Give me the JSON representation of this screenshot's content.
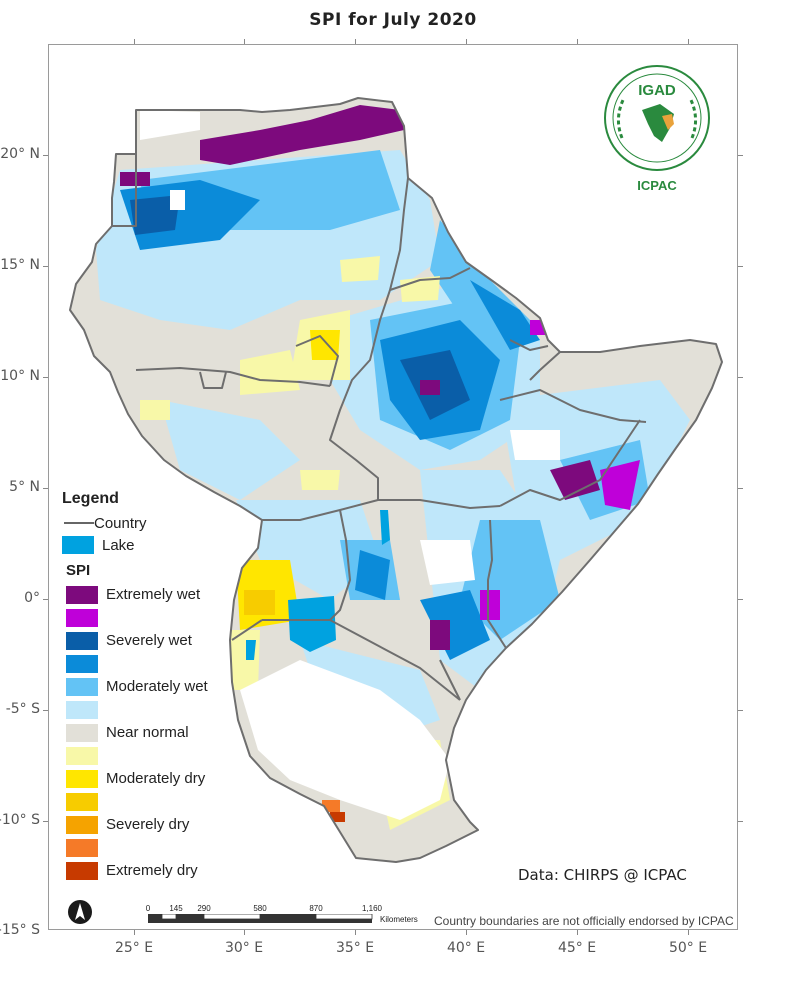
{
  "title": "SPI  for  July 2020",
  "map": {
    "lat_labels": [
      "20° N",
      "15° N",
      "10° N",
      "5° N",
      "0°",
      "-5° S",
      "-10° S",
      "-15° S"
    ],
    "lon_labels": [
      "25° E",
      "30° E",
      "35° E",
      "40° E",
      "45° E",
      "50° E"
    ]
  },
  "legend": {
    "title": "Legend",
    "country_label": "Country",
    "lake_label": "Lake",
    "lake_color": "#00a2e0",
    "spi_title": "SPI",
    "classes": [
      {
        "label": "Extremely wet",
        "color": "#7d0a7d"
      },
      {
        "label": "",
        "color": "#bf00d9"
      },
      {
        "label": "Severely wet",
        "color": "#0a5ea8"
      },
      {
        "label": "",
        "color": "#0b8bd9"
      },
      {
        "label": "Moderately wet",
        "color": "#63c3f5"
      },
      {
        "label": "",
        "color": "#bfe7fa"
      },
      {
        "label": "Near normal",
        "color": "#e2e0d8"
      },
      {
        "label": "",
        "color": "#f8f8a8"
      },
      {
        "label": "Moderately dry",
        "color": "#ffe600"
      },
      {
        "label": "",
        "color": "#f7cc00"
      },
      {
        "label": "Severely dry",
        "color": "#f5a300"
      },
      {
        "label": "",
        "color": "#f57a28"
      },
      {
        "label": "Extremely dry",
        "color": "#c73a00"
      }
    ]
  },
  "logo": {
    "acronym": "IGAD",
    "org": "ICPAC"
  },
  "credit": "Data: CHIRPS @ ICPAC",
  "scale": {
    "ticks": [
      "0",
      "145",
      "290",
      "580",
      "870",
      "1,160"
    ],
    "unit": "Kilometers"
  },
  "disclaimer": "Country boundaries are not officially endorsed by ICPAC"
}
